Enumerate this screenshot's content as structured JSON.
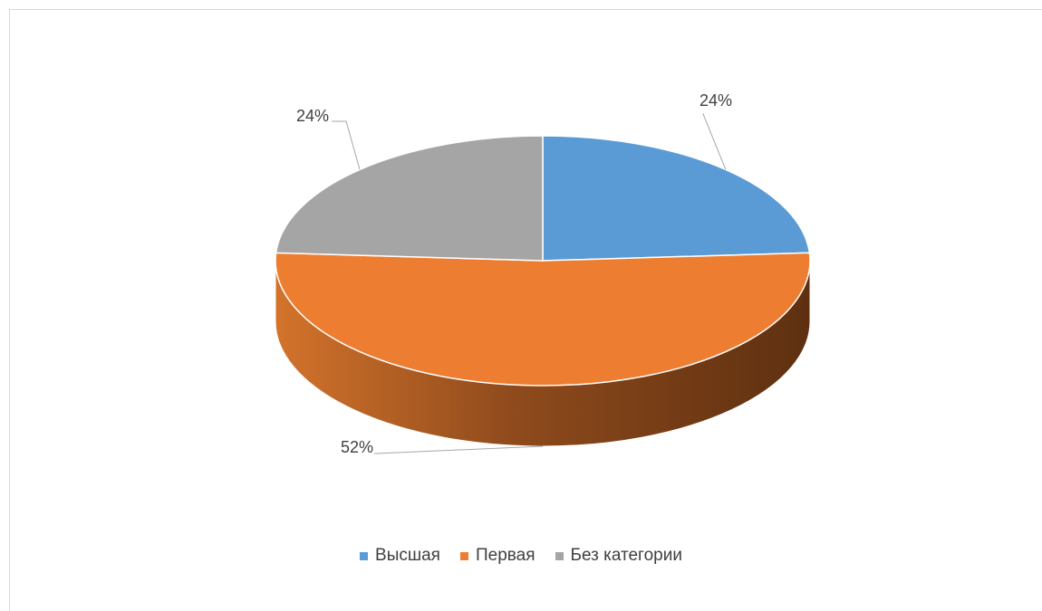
{
  "chart_data": {
    "type": "pie",
    "style": "3d",
    "categories": [
      "Высшая",
      "Первая",
      "Без категории"
    ],
    "values": [
      24,
      52,
      24
    ],
    "labels": [
      "24%",
      "52%",
      "24%"
    ],
    "colors": [
      "#5b9bd5",
      "#ed7d31",
      "#a5a5a5"
    ],
    "legend_position": "bottom",
    "title": ""
  }
}
